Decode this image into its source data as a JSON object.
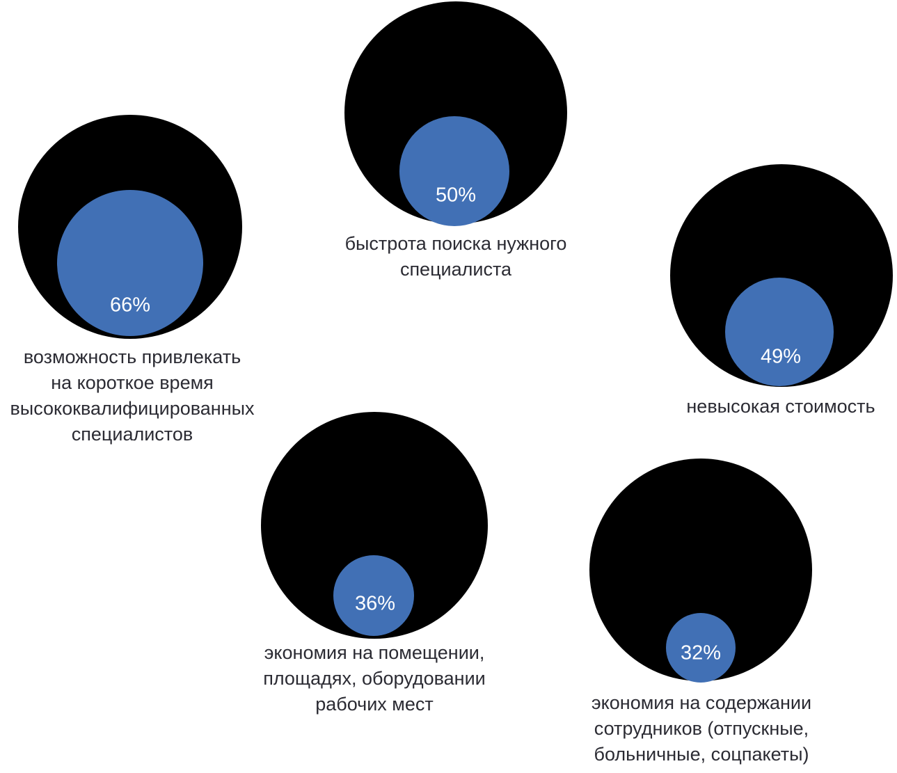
{
  "chart_data": {
    "type": "bubble",
    "title": "",
    "unit": "%",
    "legend": "none",
    "grid": false,
    "colors": {
      "outer_circle": "#000000",
      "inner_circle": "#4170b5",
      "value_text": "#ffffff",
      "label_text": "#2b2b33",
      "background": "#ffffff"
    },
    "bubbles": [
      {
        "value": 66,
        "value_label": "66%",
        "label": "возможность привлекать на короткое время высококвалифицированных специалистов",
        "label_lines": [
          "возможность привлекать",
          "на короткое время",
          "высококвалифицированных",
          "специалистов"
        ]
      },
      {
        "value": 50,
        "value_label": "50%",
        "label": "быстрота поиска нужного специалиста",
        "label_lines": [
          "быстрота поиска нужного",
          "специалиста"
        ]
      },
      {
        "value": 49,
        "value_label": "49%",
        "label": "невысокая стоимость",
        "label_lines": [
          "невысокая стоимость"
        ]
      },
      {
        "value": 36,
        "value_label": "36%",
        "label": "экономия на помещении, площадях, оборудовании рабочих мест",
        "label_lines": [
          "экономия на помещении,",
          "площадях, оборудовании",
          "рабочих мест"
        ]
      },
      {
        "value": 32,
        "value_label": "32%",
        "label": "экономия на содержании сотрудников (отпускные, больничные, соцпакеты)",
        "label_lines": [
          "экономия на содержании",
          "сотрудников (отпускные,",
          "больничные, соцпакеты)"
        ]
      }
    ]
  }
}
